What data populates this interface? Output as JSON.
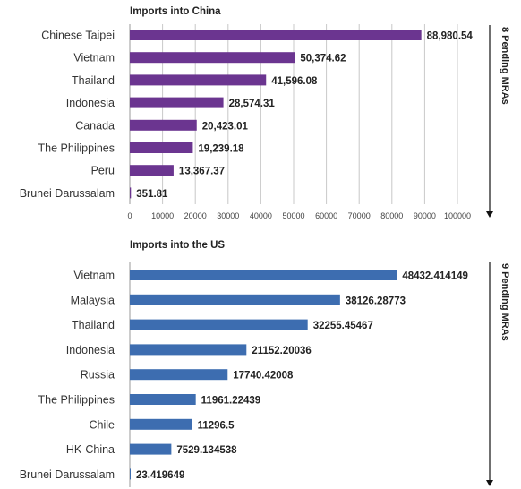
{
  "chart_data": [
    {
      "type": "bar",
      "orientation": "horizontal",
      "title": "Imports into China",
      "side_label": "8 Pending MRAs",
      "categories": [
        "Chinese Taipei",
        "Vietnam",
        "Thailand",
        "Indonesia",
        "Canada",
        "The Philippines",
        "Peru",
        "Brunei Darussalam"
      ],
      "values": [
        88980.54,
        50374.62,
        41596.08,
        28574.31,
        20423.01,
        19239.18,
        13367.37,
        351.81
      ],
      "value_labels": [
        "88,980.54",
        "50,374.62",
        "41,596.08",
        "28,574.31",
        "20,423.01",
        "19,239.18",
        "13,367.37",
        "351.81"
      ],
      "xlim": [
        0,
        100000
      ],
      "xticks": [
        "0",
        "10000",
        "20000",
        "30000",
        "40000",
        "50000",
        "60000",
        "70000",
        "80000",
        "90000",
        "100000"
      ],
      "grid": true,
      "bar_color": "#6b3590"
    },
    {
      "type": "bar",
      "orientation": "horizontal",
      "title": "Imports into the US",
      "side_label": "9 Pending MRAs",
      "categories": [
        "Vietnam",
        "Malaysia",
        "Thailand",
        "Indonesia",
        "Russia",
        "The Philippines",
        "Chile",
        "HK-China",
        "Brunei Darussalam"
      ],
      "values": [
        48432.414149,
        38126.28773,
        32255.45467,
        21152.20036,
        17740.42008,
        11961.22439,
        11296.5,
        7529.134538,
        23.419649
      ],
      "value_labels": [
        "48432.414149",
        "38126.28773",
        "32255.45467",
        "21152.20036",
        "17740.42008",
        "11961.22439",
        "11296.5",
        "7529.134538",
        "23.419649"
      ],
      "xlim": [
        0,
        55000
      ],
      "grid": false,
      "bar_color": "#3d6db0"
    }
  ]
}
